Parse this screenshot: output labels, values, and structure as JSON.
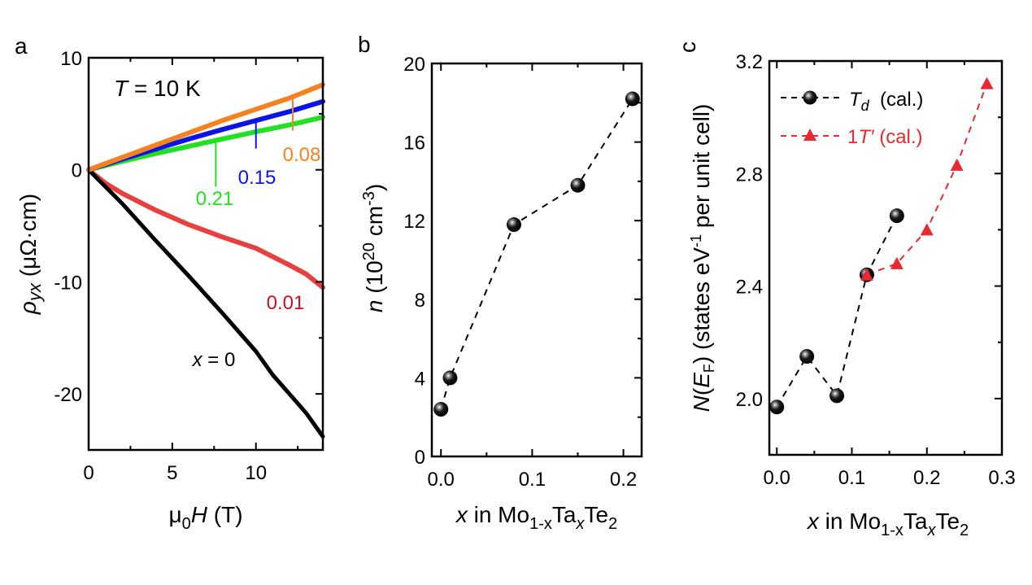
{
  "chart_data": [
    {
      "panel": "a",
      "type": "line",
      "annotation_title": {
        "var": "T",
        "rest": " = 10 K"
      },
      "xlabel": {
        "prefix": "μ",
        "sub": "0",
        "var": "H",
        "unit": " (T)"
      },
      "ylabel": {
        "var": "ρ",
        "sub": "yx",
        "unit": " (μΩ·cm)"
      },
      "xlim": [
        0,
        14
      ],
      "ylim": [
        -25,
        10
      ],
      "xticks": [
        0,
        5,
        10
      ],
      "xticks_minor": [
        2.5,
        7.5,
        12.5
      ],
      "yticks": [
        -20,
        -10,
        0,
        10
      ],
      "yticks_minor": [
        -15,
        -5,
        5
      ],
      "series": [
        {
          "name": "0.08",
          "color": "#f58220",
          "x": [
            0,
            2,
            4,
            6,
            8,
            10,
            12,
            14
          ],
          "y": [
            0,
            1.1,
            2.2,
            3.3,
            4.4,
            5.4,
            6.4,
            7.6
          ]
        },
        {
          "name": "0.15",
          "color": "#0a14e6",
          "x": [
            0,
            2,
            4,
            6,
            8,
            10,
            12,
            14
          ],
          "y": [
            0,
            0.95,
            1.85,
            2.75,
            3.6,
            4.4,
            5.2,
            6.1
          ]
        },
        {
          "name": "0.21",
          "color": "#22e022",
          "x": [
            0,
            2,
            4,
            6,
            8,
            10,
            12,
            14
          ],
          "y": [
            0,
            0.75,
            1.45,
            2.1,
            2.75,
            3.4,
            4.0,
            4.7
          ]
        },
        {
          "name": "0.01",
          "color": "#e8403f",
          "x": [
            0,
            1,
            2,
            4,
            6,
            8,
            10,
            12,
            13,
            14
          ],
          "y": [
            0,
            -1.2,
            -2.1,
            -3.6,
            -4.9,
            -6.0,
            -7.0,
            -8.5,
            -9.3,
            -10.5
          ]
        },
        {
          "name": "x = 0",
          "color": "#000000",
          "x": [
            0,
            2,
            4,
            6,
            8,
            10,
            11,
            12,
            13,
            14
          ],
          "y": [
            0,
            -3.0,
            -6.3,
            -9.5,
            -12.8,
            -16.2,
            -18.3,
            -20.0,
            -21.7,
            -23.8
          ]
        }
      ],
      "annotations": [
        {
          "text": "0.08",
          "color": "#f58220",
          "x": 12.2,
          "y_line": [
            6.4,
            3.5
          ]
        },
        {
          "text": "0.15",
          "color": "#0a14e6",
          "x": 10.0,
          "y_line": [
            4.4,
            1.9
          ]
        },
        {
          "text": "0.21",
          "color": "#22e022",
          "x": 7.6,
          "y_line": [
            2.7,
            -1.5
          ]
        },
        {
          "text": "0.01",
          "color": "#cc1020"
        },
        {
          "text_var": "x",
          "text_rest": " = 0",
          "color": "#000000"
        }
      ]
    },
    {
      "panel": "b",
      "type": "scatter",
      "xlabel": {
        "var": "x",
        "mid": " in Mo",
        "sub1": "1-x",
        "ta": "Ta",
        "sub2": "x",
        "te": "Te",
        "sub3": "2"
      },
      "ylabel": {
        "var": "n",
        "unit_pre": " (10",
        "sup1": "20",
        "unit_mid": " cm",
        "sup2": "-3",
        "unit_end": ")"
      },
      "xlim": [
        -0.01,
        0.22
      ],
      "ylim": [
        0,
        20
      ],
      "xticks": [
        "0.0",
        "0.1",
        "0.2"
      ],
      "xticks_minor": [
        0.05,
        0.15
      ],
      "yticks": [
        0,
        4,
        8,
        12,
        16,
        20
      ],
      "yticks_minor": [
        2,
        6,
        10,
        14,
        18
      ],
      "series": [
        {
          "name": "n",
          "color": "#000000",
          "x": [
            0.0,
            0.01,
            0.08,
            0.15,
            0.21
          ],
          "y": [
            2.4,
            4.0,
            11.8,
            13.8,
            18.2
          ]
        }
      ]
    },
    {
      "panel": "c",
      "type": "scatter",
      "xlabel": {
        "var": "x",
        "mid": " in Mo",
        "sub1": "1-x",
        "ta": "Ta",
        "sub2": "x",
        "te": "Te",
        "sub3": "2"
      },
      "ylabel": {
        "var": "N",
        "paren_open": "(",
        "var2": "E",
        "sub": "F",
        "rest": ") (states eV",
        "sup": "-1",
        "end": " per unit cell)"
      },
      "xlim": [
        -0.01,
        0.3
      ],
      "ylim": [
        1.8,
        3.2
      ],
      "xticks": [
        "0.0",
        "0.1",
        "0.2",
        "0.3"
      ],
      "xticks_minor": [
        0.05,
        0.15,
        0.25
      ],
      "yticks": [
        "2.0",
        "2.4",
        "2.8",
        "3.2"
      ],
      "yticks_minor": [
        2.2,
        2.6,
        3.0
      ],
      "legend_position": "top-left",
      "series": [
        {
          "name_var": "T",
          "name_sub": "d",
          "name_rest": "  (cal.)",
          "marker": "sphere",
          "color": "#000000",
          "x": [
            0.0,
            0.04,
            0.08,
            0.12,
            0.16
          ],
          "y": [
            1.97,
            2.15,
            2.01,
            2.44,
            2.65
          ]
        },
        {
          "name_pre": "1",
          "name_var": "T′",
          "name_rest": " (cal.)",
          "marker": "triangle",
          "color": "#e8292f",
          "x": [
            0.12,
            0.16,
            0.2,
            0.24,
            0.28
          ],
          "y": [
            2.44,
            2.48,
            2.6,
            2.83,
            3.12
          ]
        }
      ]
    }
  ]
}
